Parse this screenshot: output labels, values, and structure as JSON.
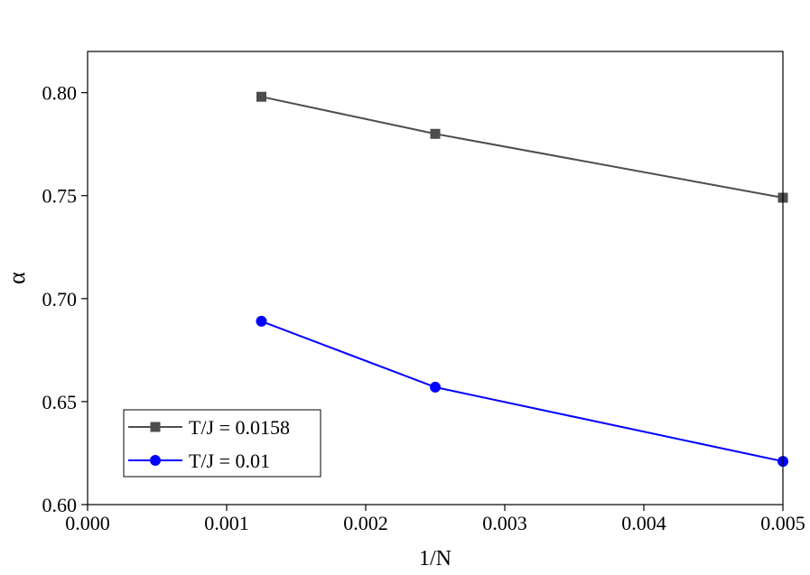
{
  "chart_data": {
    "type": "line",
    "title": "",
    "xlabel": "1/N",
    "ylabel": "α",
    "xlim": [
      0.0,
      0.005
    ],
    "ylim": [
      0.6,
      0.82
    ],
    "x_ticks": [
      0.0,
      0.001,
      0.002,
      0.003,
      0.004,
      0.005
    ],
    "x_tick_labels": [
      "0.000",
      "0.001",
      "0.002",
      "0.003",
      "0.004",
      "0.005"
    ],
    "y_ticks": [
      0.6,
      0.65,
      0.7,
      0.75,
      0.8
    ],
    "y_tick_labels": [
      "0.60",
      "0.65",
      "0.70",
      "0.75",
      "0.80"
    ],
    "grid": false,
    "legend_position": "bottom-left",
    "series": [
      {
        "name": "T/J = 0.0158",
        "marker": "square",
        "color": "#4d4d4d",
        "x": [
          0.00125,
          0.0025,
          0.005
        ],
        "y": [
          0.798,
          0.78,
          0.749
        ]
      },
      {
        "name": "T/J = 0.01",
        "marker": "circle",
        "color": "#0000ff",
        "x": [
          0.00125,
          0.0025,
          0.005
        ],
        "y": [
          0.689,
          0.657,
          0.621
        ]
      }
    ]
  }
}
